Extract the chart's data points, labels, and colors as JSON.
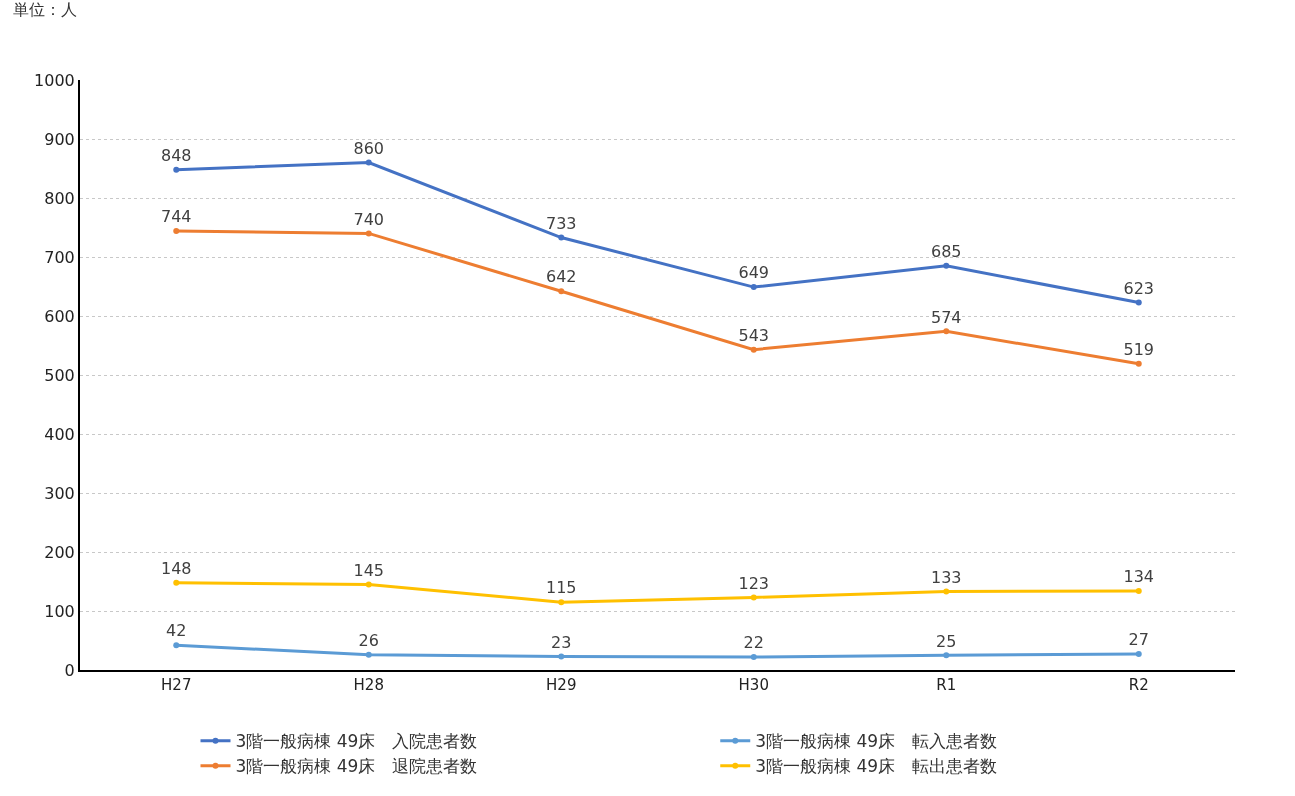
{
  "chart_data": {
    "type": "line",
    "ylabel": "単位：人",
    "categories": [
      "H27",
      "H28",
      "H29",
      "H30",
      "R1",
      "R2"
    ],
    "series": [
      {
        "name": "3階一般病棟 49床　入院患者数",
        "color": "#4472c4",
        "values": [
          848,
          860,
          733,
          649,
          685,
          623
        ]
      },
      {
        "name": "3階一般病棟 49床　転入患者数",
        "color": "#5b9bd5",
        "values": [
          42,
          26,
          23,
          22,
          25,
          27
        ]
      },
      {
        "name": "3階一般病棟 49床　退院患者数",
        "color": "#ed7d31",
        "values": [
          744,
          740,
          642,
          543,
          574,
          519
        ]
      },
      {
        "name": "3階一般病棟 49床　転出患者数",
        "color": "#ffc000",
        "values": [
          148,
          145,
          115,
          123,
          133,
          134
        ]
      }
    ],
    "ylim": [
      0,
      1000
    ],
    "yticks": [
      0,
      100,
      200,
      300,
      400,
      500,
      600,
      700,
      800,
      900,
      1000
    ],
    "grid": "y",
    "legend": "bottom",
    "marker": "circle",
    "line_style": "solid",
    "data_labels": true
  }
}
